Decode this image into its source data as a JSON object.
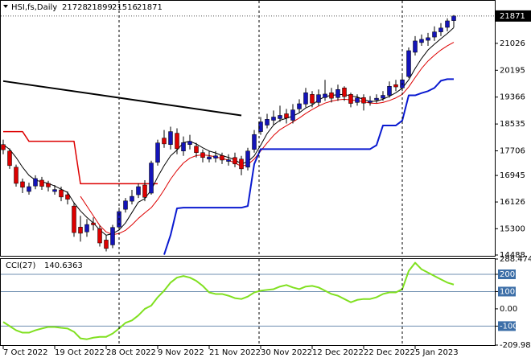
{
  "chart_data": {
    "type": "candlestick",
    "title": "HSI,fs,Daily",
    "categories": [
      "7 Oct 2022",
      null,
      null,
      null,
      null,
      null,
      null,
      null,
      "19 Oct 2022",
      null,
      null,
      null,
      null,
      null,
      null,
      null,
      "28 Oct 2022",
      null,
      null,
      null,
      null,
      null,
      null,
      null,
      "9 Nov 2022",
      null,
      null,
      null,
      null,
      null,
      null,
      null,
      "21 Nov 2022",
      null,
      null,
      null,
      null,
      null,
      null,
      null,
      "30 Nov 2022",
      null,
      null,
      null,
      null,
      null,
      null,
      null,
      "12 Dec 2022",
      null,
      null,
      null,
      null,
      null,
      null,
      null,
      "22 Dec 2022",
      null,
      null,
      null,
      null,
      null,
      null,
      null,
      "5 Jan 2023",
      null,
      null,
      null,
      null,
      null,
      null
    ],
    "open": [
      17900,
      17700,
      17200,
      16750,
      16450,
      16620,
      16800,
      16700,
      16450,
      16500,
      16350,
      16000,
      15350,
      15200,
      15480,
      15300,
      14950,
      14800,
      15350,
      15900,
      16150,
      16350,
      16650,
      16400,
      17350,
      18100,
      17900,
      18250,
      17700,
      17900,
      17850,
      17650,
      17450,
      17480,
      17560,
      17380,
      17500,
      17450,
      17200,
      17750,
      18300,
      18500,
      18650,
      18700,
      18850,
      18650,
      19000,
      19150,
      19450,
      19200,
      19350,
      19500,
      19350,
      19650,
      19450,
      19200,
      19350,
      19200,
      19280,
      19330,
      19420,
      19750,
      19650,
      20000,
      20750,
      21050,
      21120,
      21220,
      21380,
      21520,
      21728
    ],
    "high": [
      18050,
      17780,
      17280,
      16850,
      16720,
      16950,
      16900,
      16780,
      16650,
      16600,
      16450,
      16100,
      15700,
      15600,
      15650,
      15400,
      15100,
      15420,
      15950,
      16250,
      16500,
      16700,
      16800,
      17400,
      18050,
      18350,
      18450,
      18400,
      18150,
      18200,
      17950,
      17750,
      17700,
      17700,
      17650,
      17600,
      17650,
      17550,
      17800,
      18350,
      18750,
      18850,
      18950,
      19100,
      19000,
      19150,
      19300,
      19650,
      19550,
      19600,
      19900,
      19650,
      19750,
      19700,
      19500,
      19450,
      19450,
      19400,
      19450,
      19550,
      19850,
      19900,
      20050,
      20900,
      21250,
      21300,
      21350,
      21550,
      21650,
      21800,
      21899
    ],
    "low": [
      17600,
      17150,
      16600,
      16400,
      16350,
      16520,
      16500,
      16450,
      16350,
      16150,
      16050,
      15050,
      14900,
      15050,
      15250,
      14750,
      14600,
      14700,
      15250,
      15800,
      16050,
      16250,
      16150,
      16350,
      17250,
      17800,
      17750,
      17600,
      17550,
      17750,
      17500,
      17350,
      17350,
      17350,
      17300,
      17250,
      17200,
      16950,
      17100,
      17650,
      18200,
      18400,
      18500,
      18600,
      18550,
      18550,
      18900,
      19050,
      19050,
      19100,
      19250,
      19200,
      19250,
      19250,
      19050,
      19100,
      18950,
      19100,
      19180,
      19250,
      19350,
      19550,
      19550,
      19950,
      20650,
      20950,
      20950,
      21100,
      21250,
      21400,
      21516
    ],
    "close": [
      17740,
      17250,
      16700,
      16580,
      16600,
      16850,
      16610,
      16590,
      16510,
      16280,
      16210,
      15180,
      15160,
      15430,
      15420,
      14860,
      14690,
      15340,
      15830,
      16160,
      16300,
      16600,
      16270,
      17330,
      17950,
      17920,
      18300,
      17770,
      17960,
      18000,
      17650,
      17500,
      17520,
      17550,
      17420,
      17430,
      17300,
      17150,
      17700,
      18210,
      18600,
      18680,
      18750,
      18800,
      18720,
      18970,
      19160,
      19500,
      19180,
      19440,
      19460,
      19330,
      19600,
      19380,
      19170,
      19340,
      19180,
      19250,
      19330,
      19420,
      19700,
      19680,
      19900,
      20800,
      21100,
      21150,
      21200,
      21380,
      21500,
      21720,
      21871
    ],
    "up_color": "#1414b8",
    "down_color": "#dd0000",
    "ylim": [
      14463,
      22340
    ],
    "yticks": [
      21026,
      20195,
      19366,
      18535,
      17706,
      16945,
      16126,
      15300,
      14488
    ],
    "overlays": [
      {
        "color": "#dd0000",
        "width": 1.5,
        "values": [
          18300,
          18300,
          18300,
          18300,
          18000,
          18000,
          18000,
          18000,
          18000,
          18000,
          18000,
          18000,
          16690,
          16690,
          16690,
          16690,
          16690,
          16690,
          16690,
          16690,
          16690,
          16690,
          16690,
          16690,
          16690,
          null,
          null,
          null,
          null,
          null,
          null,
          null,
          null,
          null,
          null,
          null,
          null,
          null,
          null,
          null,
          null,
          null,
          null,
          null,
          null,
          null,
          null,
          null,
          null,
          null,
          null,
          null,
          null,
          null,
          null,
          null,
          null,
          null,
          null,
          null,
          null,
          null,
          null,
          null,
          null,
          null,
          null,
          null,
          null,
          null,
          null
        ]
      },
      {
        "color": "#dd0000",
        "width": 1,
        "values": [
          null,
          null,
          null,
          null,
          null,
          null,
          null,
          null,
          null,
          null,
          null,
          null,
          16300,
          16000,
          15700,
          15400,
          15200,
          15120,
          15150,
          15250,
          15420,
          15620,
          15790,
          15950,
          16200,
          16500,
          16830,
          17100,
          17330,
          17480,
          17560,
          17580,
          17560,
          17520,
          17470,
          17420,
          17330,
          17230,
          17280,
          17450,
          17700,
          17950,
          18180,
          18360,
          18480,
          18600,
          18720,
          18860,
          18980,
          19090,
          19180,
          19240,
          19280,
          19300,
          19280,
          19260,
          19220,
          19180,
          19170,
          19200,
          19260,
          19340,
          19450,
          19680,
          19970,
          20250,
          20480,
          20660,
          20820,
          20950,
          21060
        ]
      },
      {
        "color": "#000000",
        "width": 1,
        "values": [
          17900,
          17750,
          17500,
          17200,
          16950,
          16800,
          16750,
          16700,
          16620,
          16520,
          16420,
          16100,
          15850,
          15650,
          15480,
          15260,
          15100,
          15150,
          15260,
          15480,
          15800,
          16120,
          16230,
          16500,
          16900,
          17250,
          17550,
          17730,
          17960,
          18000,
          17920,
          17800,
          17700,
          17640,
          17560,
          17500,
          17430,
          17300,
          17370,
          17550,
          17880,
          18240,
          18500,
          18650,
          18710,
          18780,
          18880,
          19030,
          19120,
          19280,
          19380,
          19420,
          19440,
          19450,
          19400,
          19370,
          19290,
          19230,
          19240,
          19300,
          19390,
          19500,
          19640,
          19900,
          20250,
          20560,
          20820,
          21000,
          21170,
          21330,
          21510
        ]
      },
      {
        "color": "#0a1ad0",
        "width": 2,
        "values": [
          null,
          null,
          null,
          null,
          null,
          null,
          null,
          null,
          null,
          null,
          null,
          null,
          null,
          null,
          null,
          null,
          null,
          null,
          null,
          null,
          null,
          null,
          null,
          null,
          null,
          14500,
          15100,
          15930,
          15950,
          15950,
          15950,
          15950,
          15950,
          15950,
          15950,
          15950,
          15950,
          15950,
          16000,
          17300,
          17760,
          17760,
          17760,
          17760,
          17760,
          17760,
          17760,
          17760,
          17760,
          17760,
          17760,
          17760,
          17760,
          17760,
          17760,
          17760,
          17760,
          17760,
          17880,
          18490,
          18490,
          18490,
          18640,
          19420,
          19420,
          19490,
          19550,
          19650,
          19870,
          19920,
          19920
        ]
      }
    ],
    "trendline": {
      "color": "#000000",
      "start": [
        0,
        19860
      ],
      "end": [
        37,
        18800
      ]
    },
    "indicator": {
      "title": "CCI(27)",
      "color": "#80e020",
      "level_color": "#6f8fb0",
      "label_color": "#3d6fa8",
      "values": [
        -76,
        -100,
        -124,
        -138,
        -138,
        -124,
        -114,
        -105,
        -105,
        -110,
        -114,
        -133,
        -171,
        -176,
        -167,
        -162,
        -162,
        -143,
        -114,
        -81,
        -67,
        -38,
        0,
        19,
        67,
        105,
        152,
        181,
        190,
        181,
        162,
        133,
        95,
        86,
        86,
        76,
        62,
        57,
        71,
        95,
        105,
        110,
        114,
        129,
        138,
        124,
        114,
        129,
        133,
        124,
        105,
        86,
        76,
        57,
        38,
        52,
        57,
        57,
        67,
        86,
        95,
        95,
        114,
        219,
        267,
        229,
        210,
        190,
        171,
        152,
        140.6363
      ],
      "ylim": [
        -209.9875,
        288.4747
      ],
      "yticks": [
        288.4747,
        200,
        100,
        {
          "value": 0,
          "label": "0.00"
        },
        -100,
        -209.9875
      ],
      "highlighted_ticks": [
        1,
        2,
        4
      ]
    }
  }
}
